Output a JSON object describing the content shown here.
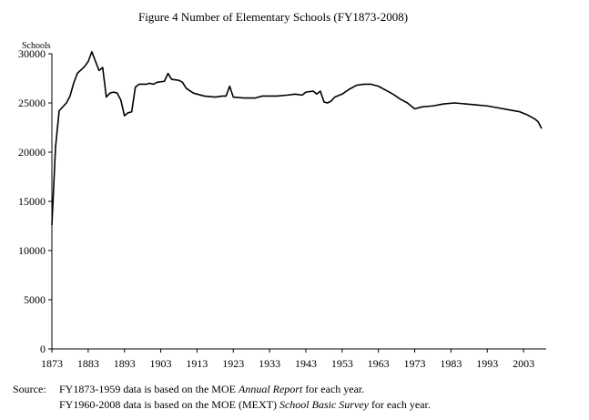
{
  "chart_data": {
    "type": "line",
    "title": "Figure 4 Number of Elementary Schools (FY1873-2008)",
    "y_label": "Schools",
    "x": [
      1873,
      1874,
      1875,
      1877,
      1878,
      1879,
      1880,
      1882,
      1883,
      1884,
      1886,
      1887,
      1888,
      1889,
      1890,
      1891,
      1892,
      1893,
      1894,
      1895,
      1896,
      1897,
      1899,
      1900,
      1901,
      1902,
      1904,
      1905,
      1906,
      1908,
      1909,
      1910,
      1912,
      1915,
      1918,
      1920,
      1921,
      1922,
      1923,
      1926,
      1929,
      1931,
      1935,
      1938,
      1940,
      1942,
      1943,
      1945,
      1946,
      1947,
      1948,
      1949,
      1950,
      1951,
      1953,
      1955,
      1957,
      1959,
      1961,
      1963,
      1965,
      1967,
      1969,
      1971,
      1973,
      1975,
      1978,
      1981,
      1984,
      1987,
      1990,
      1993,
      1996,
      1999,
      2002,
      2004,
      2006,
      2007,
      2008
    ],
    "series": [
      {
        "name": "Schools",
        "color": "#000000",
        "values": [
          12600,
          20500,
          24200,
          25000,
          25700,
          27000,
          28000,
          28700,
          29200,
          30200,
          28300,
          28600,
          25600,
          26000,
          26100,
          26000,
          25300,
          23700,
          24000,
          24100,
          26600,
          26900,
          26900,
          27000,
          26900,
          27100,
          27200,
          28000,
          27400,
          27300,
          27100,
          26500,
          26000,
          25700,
          25600,
          25700,
          25700,
          26700,
          25600,
          25500,
          25500,
          25700,
          25700,
          25800,
          25900,
          25800,
          26100,
          26200,
          25900,
          26200,
          25100,
          25000,
          25200,
          25600,
          25900,
          26400,
          26800,
          26900,
          26900,
          26700,
          26300,
          25900,
          25400,
          25000,
          24400,
          24600,
          24700,
          24900,
          25000,
          24900,
          24800,
          24700,
          24500,
          24300,
          24100,
          23800,
          23400,
          23100,
          22400
        ]
      }
    ],
    "xlim": [
      1873,
      2009
    ],
    "xticks": [
      1873,
      1883,
      1893,
      1903,
      1913,
      1923,
      1933,
      1943,
      1953,
      1963,
      1973,
      1983,
      1993,
      2003
    ],
    "ylim": [
      0,
      30000
    ],
    "yticks": [
      0,
      5000,
      10000,
      15000,
      20000,
      25000,
      30000
    ],
    "source_label": "Source:",
    "source_lines": [
      [
        "FY1873-1959 data is based on the MOE ",
        "Annual Report",
        " for each year."
      ],
      [
        "FY1960-2008 data is based on the MOE (MEXT) ",
        "School Basic Survey",
        " for each year."
      ]
    ]
  }
}
